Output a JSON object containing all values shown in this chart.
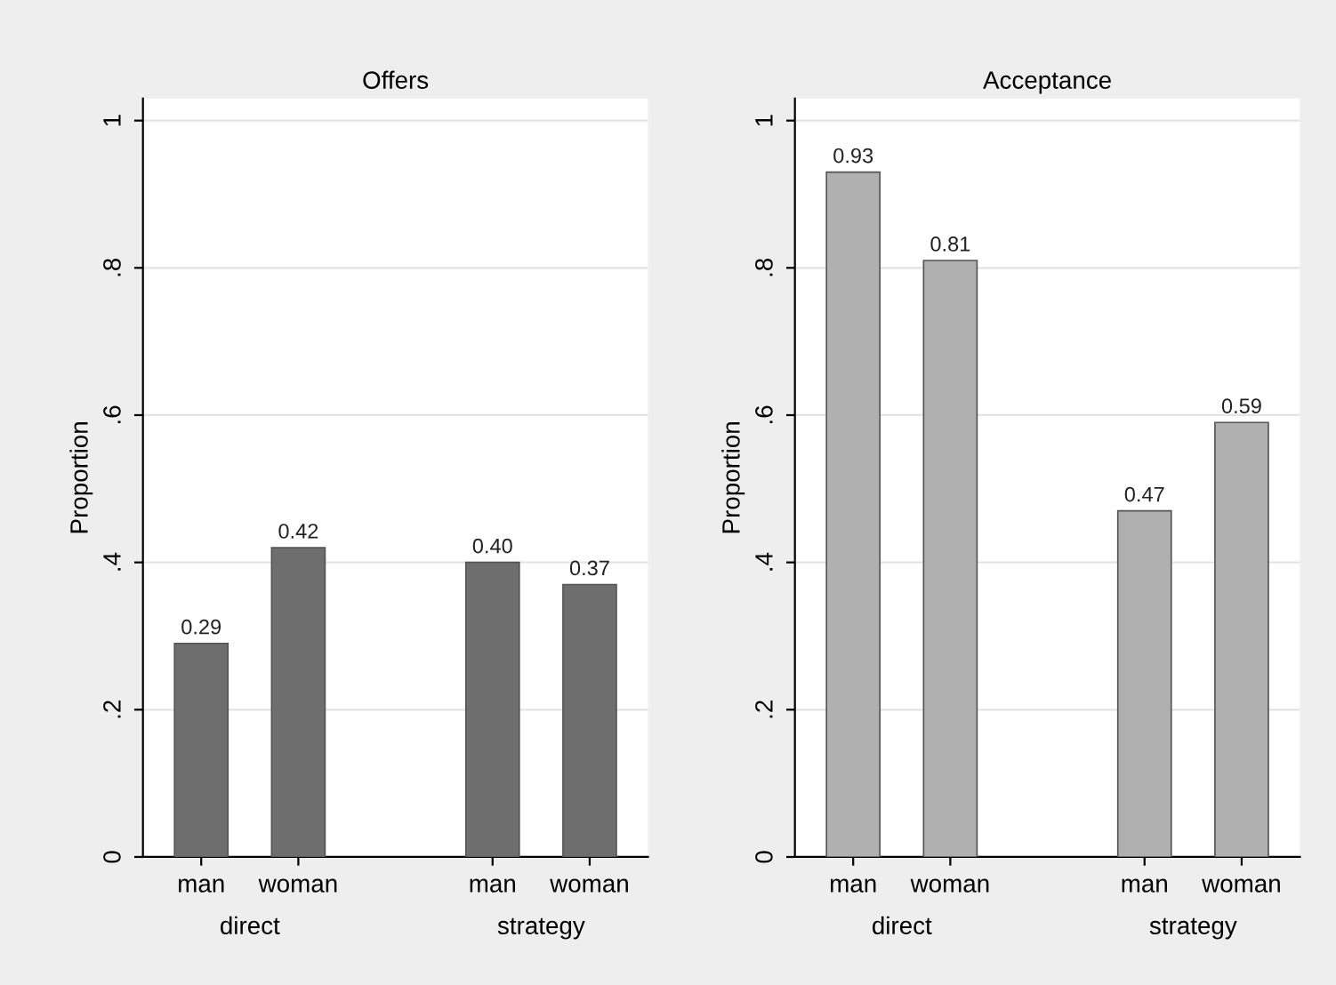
{
  "chart_data": [
    {
      "type": "bar",
      "title": "Offers",
      "ylabel": "Proportion",
      "categories": [
        "man",
        "woman",
        null,
        "man",
        "woman"
      ],
      "values": [
        0.29,
        0.42,
        null,
        0.4,
        0.37
      ],
      "color": "#6e6e6e",
      "value_labels": [
        "0.29",
        "0.42",
        null,
        "0.40",
        "0.37"
      ],
      "annotations": [
        "direct",
        "strategy"
      ],
      "ylim": [
        0,
        1.03
      ],
      "yticks": [
        0,
        {
          "value": 0.2,
          "label": ".2"
        },
        {
          "value": 0.4,
          "label": ".4"
        },
        {
          "value": 0.6,
          "label": ".6"
        },
        {
          "value": 0.8,
          "label": ".8"
        },
        1
      ],
      "grid": "y"
    },
    {
      "type": "bar",
      "title": "Acceptance",
      "ylabel": "Proportion",
      "categories": [
        "man",
        "woman",
        null,
        "man",
        "woman"
      ],
      "values": [
        0.93,
        0.81,
        null,
        0.47,
        0.59
      ],
      "color": "#b0b0b0",
      "annotations": [
        "direct",
        "strategy"
      ],
      "ylim": [
        0,
        1.03
      ],
      "yticks": [
        0,
        {
          "value": 0.2,
          "label": ".2"
        },
        {
          "value": 0.4,
          "label": ".4"
        },
        {
          "value": 0.6,
          "label": ".6"
        },
        {
          "value": 0.8,
          "label": ".8"
        },
        1
      ],
      "grid": "y",
      "data_labels": true
    }
  ]
}
